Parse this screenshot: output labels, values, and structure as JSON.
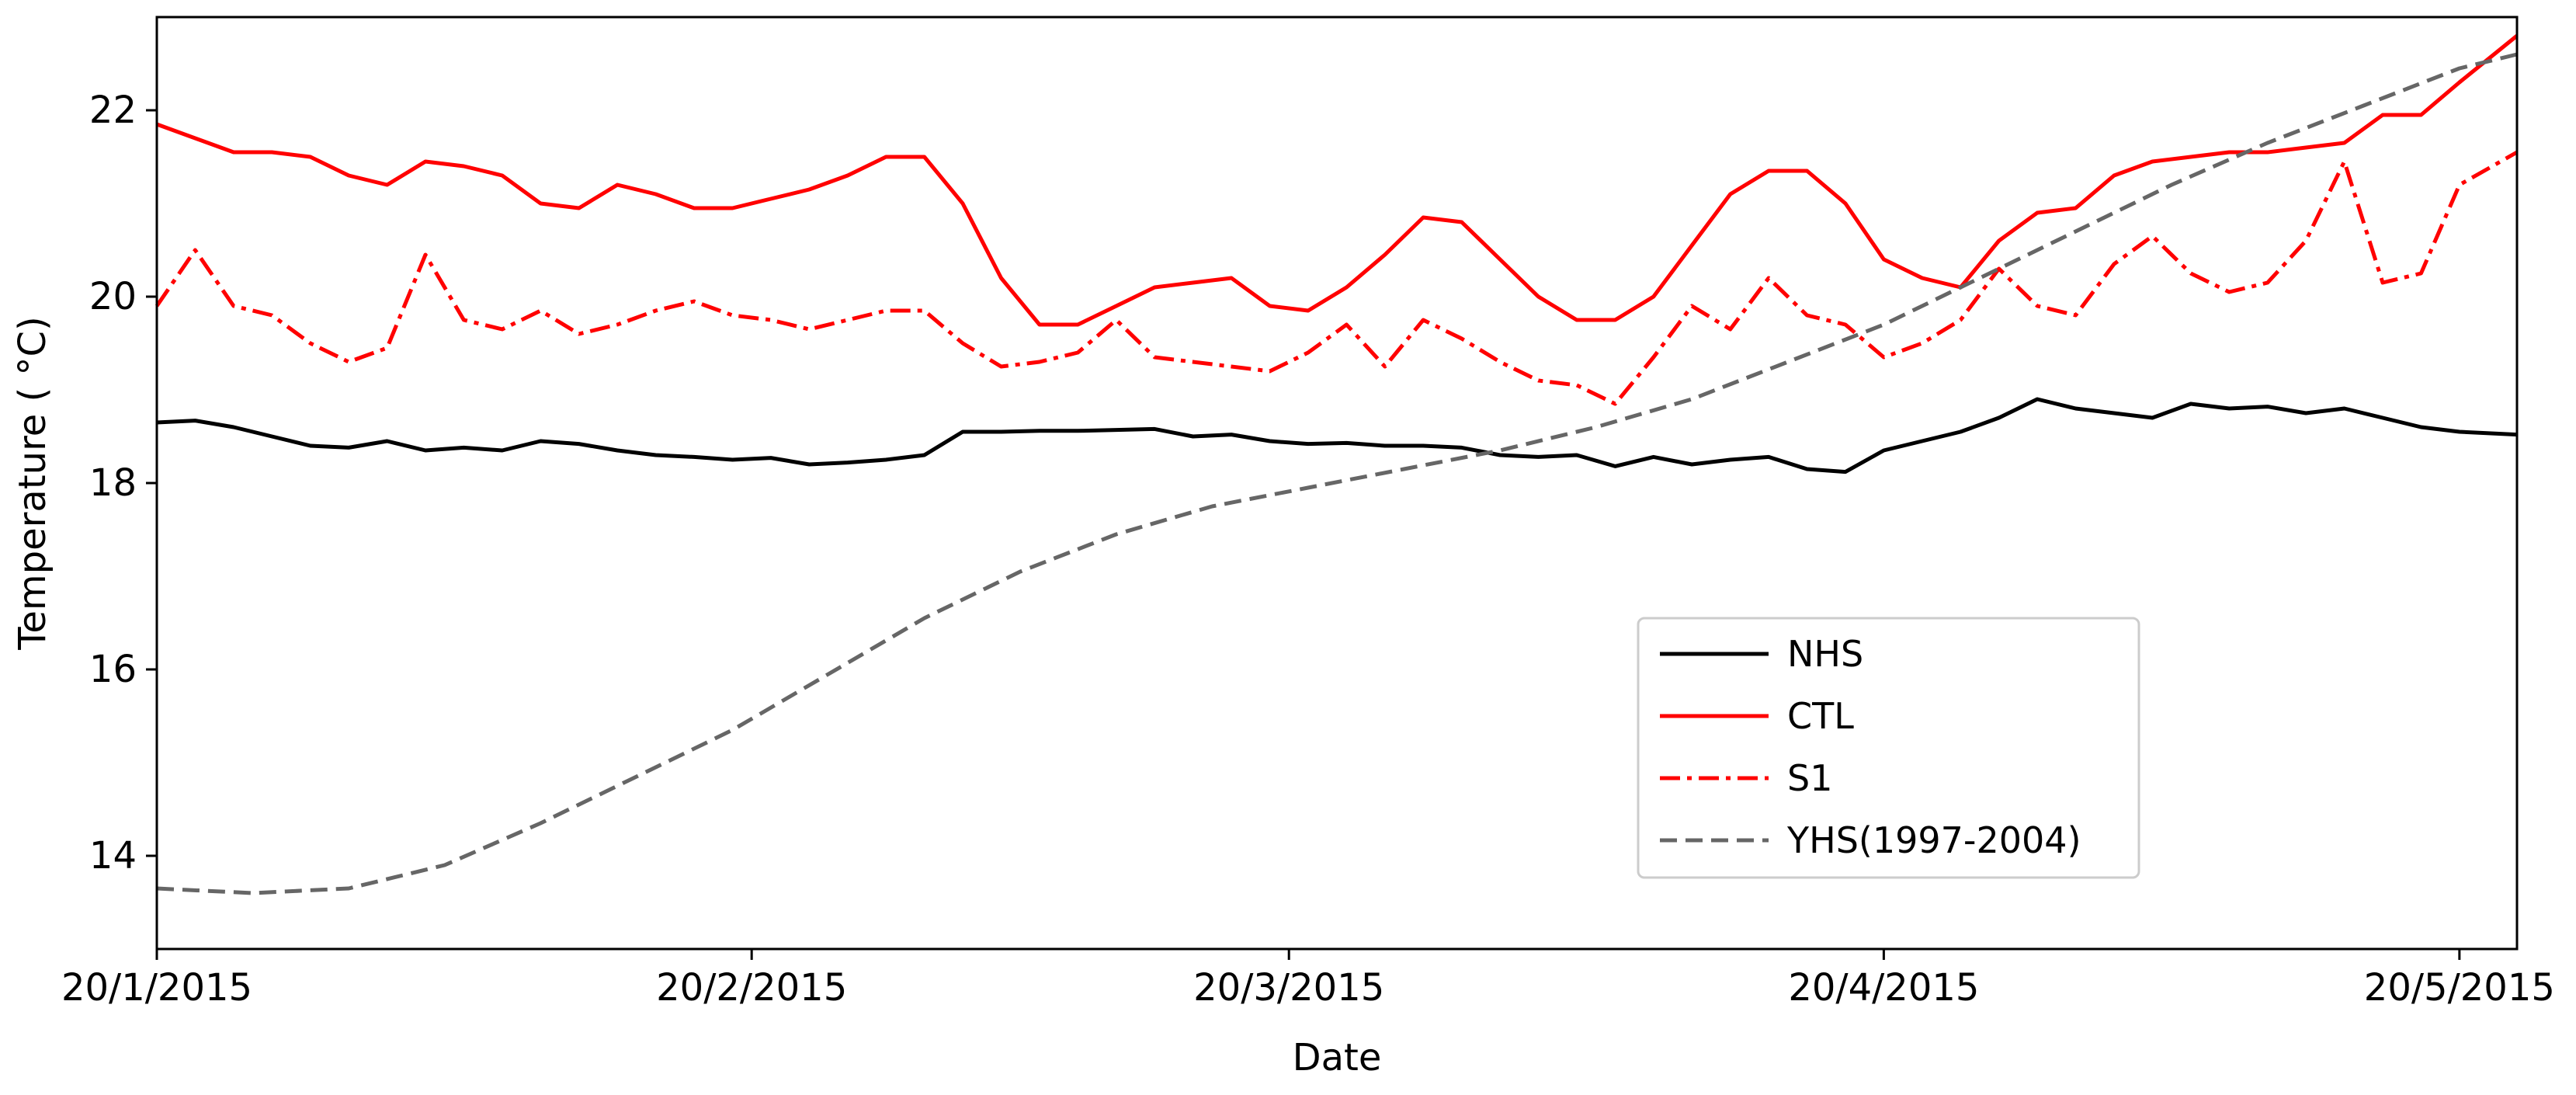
{
  "chart_data": {
    "type": "line",
    "title": "",
    "xlabel": "Date",
    "ylabel": "Temperature ( °C)",
    "x_ticks": [
      "20/1/2015",
      "20/2/2015",
      "20/3/2015",
      "20/4/2015",
      "20/5/2015"
    ],
    "xlim": [
      "2015-01-20",
      "2015-05-23"
    ],
    "ylim": [
      13.0,
      23.0
    ],
    "y_ticks": [
      14,
      16,
      18,
      20,
      22
    ],
    "grid": false,
    "legend_position": "lower-right",
    "series": [
      {
        "name": "NHS",
        "color": "#000000",
        "style": "solid",
        "x": [
          "2015-01-20",
          "2015-01-22",
          "2015-01-24",
          "2015-01-26",
          "2015-01-28",
          "2015-01-30",
          "2015-02-01",
          "2015-02-03",
          "2015-02-05",
          "2015-02-07",
          "2015-02-09",
          "2015-02-11",
          "2015-02-13",
          "2015-02-15",
          "2015-02-17",
          "2015-02-19",
          "2015-02-21",
          "2015-02-23",
          "2015-02-25",
          "2015-02-27",
          "2015-03-01",
          "2015-03-03",
          "2015-03-05",
          "2015-03-07",
          "2015-03-09",
          "2015-03-11",
          "2015-03-13",
          "2015-03-15",
          "2015-03-17",
          "2015-03-19",
          "2015-03-21",
          "2015-03-23",
          "2015-03-25",
          "2015-03-27",
          "2015-03-29",
          "2015-03-31",
          "2015-04-02",
          "2015-04-04",
          "2015-04-06",
          "2015-04-08",
          "2015-04-10",
          "2015-04-12",
          "2015-04-14",
          "2015-04-16",
          "2015-04-18",
          "2015-04-20",
          "2015-04-22",
          "2015-04-24",
          "2015-04-26",
          "2015-04-28",
          "2015-04-30",
          "2015-05-02",
          "2015-05-04",
          "2015-05-06",
          "2015-05-08",
          "2015-05-10",
          "2015-05-12",
          "2015-05-14",
          "2015-05-16",
          "2015-05-18",
          "2015-05-20",
          "2015-05-23"
        ],
        "y": [
          18.65,
          18.67,
          18.6,
          18.5,
          18.4,
          18.38,
          18.45,
          18.35,
          18.38,
          18.35,
          18.45,
          18.42,
          18.35,
          18.3,
          18.28,
          18.25,
          18.27,
          18.2,
          18.22,
          18.25,
          18.3,
          18.55,
          18.55,
          18.56,
          18.56,
          18.57,
          18.58,
          18.5,
          18.52,
          18.45,
          18.42,
          18.43,
          18.4,
          18.4,
          18.38,
          18.3,
          18.28,
          18.3,
          18.18,
          18.28,
          18.2,
          18.25,
          18.28,
          18.15,
          18.12,
          18.35,
          18.45,
          18.55,
          18.7,
          18.9,
          18.8,
          18.75,
          18.7,
          18.85,
          18.8,
          18.82,
          18.75,
          18.8,
          18.7,
          18.6,
          18.55,
          18.52
        ]
      },
      {
        "name": "CTL",
        "color": "#ff0000",
        "style": "solid",
        "x": [
          "2015-01-20",
          "2015-01-22",
          "2015-01-24",
          "2015-01-26",
          "2015-01-28",
          "2015-01-30",
          "2015-02-01",
          "2015-02-03",
          "2015-02-05",
          "2015-02-07",
          "2015-02-09",
          "2015-02-11",
          "2015-02-13",
          "2015-02-15",
          "2015-02-17",
          "2015-02-19",
          "2015-02-21",
          "2015-02-23",
          "2015-02-25",
          "2015-02-27",
          "2015-03-01",
          "2015-03-03",
          "2015-03-05",
          "2015-03-07",
          "2015-03-09",
          "2015-03-11",
          "2015-03-13",
          "2015-03-15",
          "2015-03-17",
          "2015-03-19",
          "2015-03-21",
          "2015-03-23",
          "2015-03-25",
          "2015-03-27",
          "2015-03-29",
          "2015-03-31",
          "2015-04-02",
          "2015-04-04",
          "2015-04-06",
          "2015-04-08",
          "2015-04-10",
          "2015-04-12",
          "2015-04-14",
          "2015-04-16",
          "2015-04-18",
          "2015-04-20",
          "2015-04-22",
          "2015-04-24",
          "2015-04-26",
          "2015-04-28",
          "2015-04-30",
          "2015-05-02",
          "2015-05-04",
          "2015-05-06",
          "2015-05-08",
          "2015-05-10",
          "2015-05-12",
          "2015-05-14",
          "2015-05-16",
          "2015-05-18",
          "2015-05-20",
          "2015-05-23"
        ],
        "y": [
          21.85,
          21.7,
          21.55,
          21.55,
          21.5,
          21.3,
          21.2,
          21.45,
          21.4,
          21.3,
          21.0,
          20.95,
          21.2,
          21.1,
          20.95,
          20.95,
          21.05,
          21.15,
          21.3,
          21.5,
          21.5,
          21.0,
          20.2,
          19.7,
          19.7,
          19.9,
          20.1,
          20.15,
          20.2,
          19.9,
          19.85,
          20.1,
          20.45,
          20.85,
          20.8,
          20.4,
          20.0,
          19.75,
          19.75,
          20.0,
          20.55,
          21.1,
          21.35,
          21.35,
          21.0,
          20.4,
          20.2,
          20.1,
          20.6,
          20.9,
          20.95,
          21.3,
          21.45,
          21.5,
          21.55,
          21.55,
          21.6,
          21.65,
          21.95,
          21.95,
          22.3,
          22.8
        ]
      },
      {
        "name": "S1",
        "color": "#ff0000",
        "style": "dashdot",
        "x": [
          "2015-01-20",
          "2015-01-22",
          "2015-01-24",
          "2015-01-26",
          "2015-01-28",
          "2015-01-30",
          "2015-02-01",
          "2015-02-03",
          "2015-02-05",
          "2015-02-07",
          "2015-02-09",
          "2015-02-11",
          "2015-02-13",
          "2015-02-15",
          "2015-02-17",
          "2015-02-19",
          "2015-02-21",
          "2015-02-23",
          "2015-02-25",
          "2015-02-27",
          "2015-03-01",
          "2015-03-03",
          "2015-03-05",
          "2015-03-07",
          "2015-03-09",
          "2015-03-11",
          "2015-03-13",
          "2015-03-15",
          "2015-03-17",
          "2015-03-19",
          "2015-03-21",
          "2015-03-23",
          "2015-03-25",
          "2015-03-27",
          "2015-03-29",
          "2015-03-31",
          "2015-04-02",
          "2015-04-04",
          "2015-04-06",
          "2015-04-08",
          "2015-04-10",
          "2015-04-12",
          "2015-04-14",
          "2015-04-16",
          "2015-04-18",
          "2015-04-20",
          "2015-04-22",
          "2015-04-24",
          "2015-04-26",
          "2015-04-28",
          "2015-04-30",
          "2015-05-02",
          "2015-05-04",
          "2015-05-06",
          "2015-05-08",
          "2015-05-10",
          "2015-05-12",
          "2015-05-14",
          "2015-05-16",
          "2015-05-18",
          "2015-05-20",
          "2015-05-23"
        ],
        "y": [
          19.9,
          20.5,
          19.9,
          19.8,
          19.5,
          19.3,
          19.45,
          20.45,
          19.75,
          19.65,
          19.85,
          19.6,
          19.7,
          19.85,
          19.95,
          19.8,
          19.75,
          19.65,
          19.75,
          19.85,
          19.85,
          19.5,
          19.25,
          19.3,
          19.4,
          19.75,
          19.35,
          19.3,
          19.25,
          19.2,
          19.4,
          19.7,
          19.25,
          19.75,
          19.55,
          19.3,
          19.1,
          19.05,
          18.85,
          19.35,
          19.9,
          19.65,
          20.2,
          19.8,
          19.7,
          19.35,
          19.5,
          19.75,
          20.3,
          19.9,
          19.8,
          20.35,
          20.65,
          20.25,
          20.05,
          20.15,
          20.6,
          21.45,
          20.15,
          20.25,
          21.2,
          21.55
        ]
      },
      {
        "name": "YHS(1997-2004)",
        "color": "#666666",
        "style": "dashed",
        "x": [
          "2015-01-20",
          "2015-01-25",
          "2015-01-30",
          "2015-02-04",
          "2015-02-09",
          "2015-02-14",
          "2015-02-19",
          "2015-02-24",
          "2015-03-01",
          "2015-03-06",
          "2015-03-11",
          "2015-03-16",
          "2015-03-21",
          "2015-03-26",
          "2015-03-31",
          "2015-04-05",
          "2015-04-10",
          "2015-04-15",
          "2015-04-20",
          "2015-04-25",
          "2015-04-30",
          "2015-05-05",
          "2015-05-10",
          "2015-05-15",
          "2015-05-20",
          "2015-05-23"
        ],
        "y": [
          13.65,
          13.6,
          13.65,
          13.9,
          14.35,
          14.85,
          15.35,
          15.95,
          16.55,
          17.05,
          17.45,
          17.75,
          17.95,
          18.15,
          18.35,
          18.6,
          18.9,
          19.3,
          19.7,
          20.2,
          20.7,
          21.2,
          21.65,
          22.05,
          22.45,
          22.6
        ]
      }
    ]
  }
}
